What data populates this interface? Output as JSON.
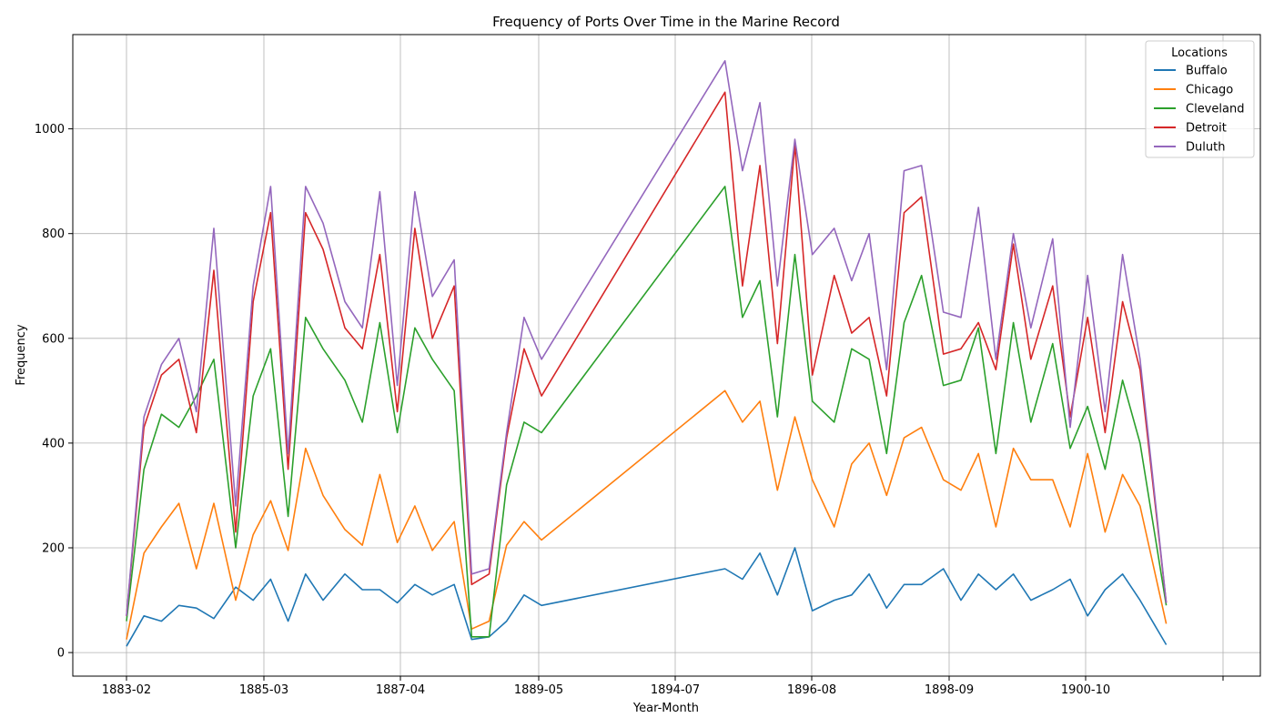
{
  "chart_data": {
    "type": "line",
    "title": "Frequency of Ports Over Time in the Marine Record",
    "xlabel": "Year-Month",
    "ylabel": "Frequency",
    "xlim": [
      "1883-02",
      "1904-01"
    ],
    "ylim": [
      -45,
      1180
    ],
    "grid": true,
    "legend": {
      "title": "Locations",
      "placement": "top-right"
    },
    "x_ticks": [
      "1883-02",
      "1885-03",
      "1887-04",
      "1889-05",
      "1894-07",
      "1896-08",
      "1898-09",
      "1900-10",
      ""
    ],
    "y_ticks": [
      0,
      200,
      400,
      600,
      800,
      1000
    ],
    "x": [
      "1883-02",
      "1883-06",
      "1883-10",
      "1884-02",
      "1884-06",
      "1884-10",
      "1885-03",
      "1885-07",
      "1885-11",
      "1886-03",
      "1886-07",
      "1886-11",
      "1887-04",
      "1887-08",
      "1887-12",
      "1888-04",
      "1888-08",
      "1888-12",
      "1889-05",
      "1889-09",
      "1890-01",
      "1890-05",
      "1890-09",
      "1891-01",
      "1894-07",
      "1894-11",
      "1895-03",
      "1895-07",
      "1895-11",
      "1896-03",
      "1896-08",
      "1896-12",
      "1897-04",
      "1897-08",
      "1897-12",
      "1898-04",
      "1898-09",
      "1899-01",
      "1899-05",
      "1899-09",
      "1900-01",
      "1900-05",
      "1900-10",
      "1901-02",
      "1901-06",
      "1901-10",
      "1902-02",
      "1902-06",
      "1902-12"
    ],
    "series": [
      {
        "name": "Buffalo",
        "color": "#1f77b4",
        "values": [
          12,
          70,
          60,
          90,
          85,
          65,
          125,
          100,
          140,
          60,
          150,
          100,
          150,
          120,
          120,
          95,
          130,
          110,
          130,
          25,
          30,
          60,
          110,
          90,
          160,
          140,
          190,
          110,
          200,
          80,
          100,
          110,
          150,
          85,
          130,
          130,
          160,
          100,
          150,
          120,
          150,
          100,
          120,
          140,
          70,
          120,
          150,
          100,
          15
        ]
      },
      {
        "name": "Chicago",
        "color": "#ff7f0e",
        "values": [
          25,
          190,
          240,
          285,
          160,
          285,
          100,
          225,
          290,
          195,
          390,
          300,
          235,
          205,
          340,
          210,
          280,
          195,
          250,
          45,
          60,
          205,
          250,
          215,
          500,
          440,
          480,
          310,
          450,
          330,
          240,
          360,
          400,
          300,
          410,
          430,
          330,
          310,
          380,
          240,
          390,
          330,
          330,
          240,
          380,
          230,
          340,
          280,
          55
        ]
      },
      {
        "name": "Cleveland",
        "color": "#2ca02c",
        "values": [
          60,
          350,
          455,
          430,
          490,
          560,
          200,
          490,
          580,
          260,
          640,
          580,
          520,
          440,
          630,
          420,
          620,
          560,
          500,
          30,
          30,
          320,
          440,
          420,
          890,
          640,
          710,
          450,
          760,
          480,
          440,
          580,
          560,
          380,
          630,
          720,
          510,
          520,
          620,
          380,
          630,
          440,
          590,
          390,
          470,
          350,
          520,
          400,
          90
        ]
      },
      {
        "name": "Detroit",
        "color": "#d62728",
        "values": [
          70,
          430,
          530,
          560,
          420,
          730,
          230,
          670,
          840,
          350,
          840,
          770,
          620,
          580,
          760,
          460,
          810,
          600,
          700,
          130,
          150,
          410,
          580,
          490,
          1070,
          700,
          930,
          590,
          970,
          530,
          720,
          610,
          640,
          490,
          840,
          870,
          570,
          580,
          630,
          540,
          780,
          560,
          700,
          450,
          640,
          420,
          670,
          540,
          95
        ]
      },
      {
        "name": "Duluth",
        "color": "#9467bd",
        "values": [
          70,
          450,
          550,
          600,
          460,
          810,
          280,
          700,
          890,
          380,
          890,
          820,
          670,
          620,
          880,
          510,
          880,
          680,
          750,
          150,
          160,
          420,
          640,
          560,
          1130,
          920,
          1050,
          700,
          980,
          760,
          810,
          710,
          800,
          540,
          920,
          930,
          650,
          640,
          850,
          560,
          800,
          620,
          790,
          430,
          720,
          460,
          760,
          560,
          95
        ]
      }
    ]
  }
}
